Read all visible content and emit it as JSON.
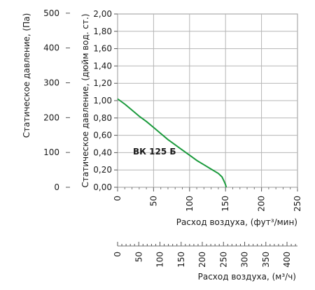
{
  "chart_data": {
    "type": "line",
    "title": "",
    "grid": true,
    "series": [
      {
        "name": "ВК 125 Б",
        "color": "#1a9a3c",
        "points": [
          [
            0,
            1.02
          ],
          [
            10,
            0.96
          ],
          [
            20,
            0.89
          ],
          [
            30,
            0.82
          ],
          [
            40,
            0.76
          ],
          [
            50,
            0.69
          ],
          [
            60,
            0.62
          ],
          [
            70,
            0.55
          ],
          [
            80,
            0.49
          ],
          [
            90,
            0.43
          ],
          [
            100,
            0.37
          ],
          [
            110,
            0.31
          ],
          [
            120,
            0.26
          ],
          [
            130,
            0.21
          ],
          [
            140,
            0.16
          ],
          [
            145,
            0.12
          ],
          [
            148,
            0.07
          ],
          [
            150,
            0.03
          ],
          [
            151,
            0.0
          ]
        ]
      }
    ],
    "axes": {
      "x_cfm": {
        "label": "Расход воздуха, (фут³/мин)",
        "range": [
          0,
          250
        ],
        "ticks": [
          "0",
          "50",
          "100",
          "150",
          "200",
          "250"
        ],
        "minor_step": 10
      },
      "x_m3h": {
        "label": "Расход воздуха, (м³/ч)",
        "range": [
          0,
          424.75
        ],
        "ticks": [
          "0",
          "50",
          "100",
          "150",
          "200",
          "250",
          "300",
          "350",
          "400"
        ],
        "minor_step": 10
      },
      "y_inwg": {
        "label": "Статическое давление, (дюйм вод. ст.)",
        "range": [
          0,
          2.0
        ],
        "ticks": [
          "0,00",
          "0,20",
          "0,40",
          "0,60",
          "0,80",
          "1,00",
          "1,20",
          "1,40",
          "1,60",
          "1,80",
          "2,00"
        ]
      },
      "y_pa": {
        "label": "Статическое давление, (Па)",
        "range": [
          0,
          497.68
        ],
        "ticks": [
          "0",
          "100",
          "200",
          "300",
          "400",
          "500"
        ]
      }
    }
  }
}
